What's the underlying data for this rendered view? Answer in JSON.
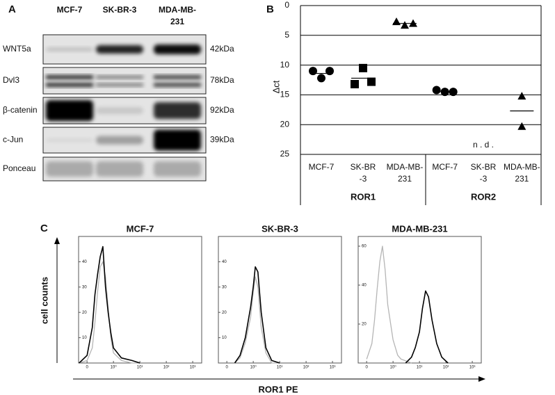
{
  "panel_labels": [
    "A",
    "B",
    "C"
  ],
  "blot": {
    "columns": [
      [
        "MCF-7"
      ],
      [
        "SK-BR-3"
      ],
      [
        "MDA-MB-",
        "231"
      ]
    ],
    "rows": [
      {
        "label": "WNT5a",
        "size": "42kDa"
      },
      {
        "label": "Dvl3",
        "size": "78kDa"
      },
      {
        "label": "β-catenin",
        "size": "92kDa"
      },
      {
        "label": "c-Jun",
        "size": "39kDa"
      },
      {
        "label": "Ponceau"
      }
    ]
  },
  "flow_axes": {
    "y_label": "cell counts",
    "x_label": "ROR1 PE"
  },
  "chart_data": [
    {
      "type": "dot",
      "y_label": "Δct",
      "ylim": [
        0,
        25
      ],
      "y_inverted": true,
      "yticks": [
        0,
        5,
        10,
        15,
        20,
        25
      ],
      "grid": true,
      "groups": [
        {
          "name": "ROR1",
          "categories": [
            {
              "label": [
                "MCF-7"
              ],
              "marker": "circle",
              "values": [
                11,
                12.2,
                11
              ],
              "mean": 11.4
            },
            {
              "label": [
                "SK-BR",
                "-3"
              ],
              "marker": "square",
              "values": [
                13.2,
                10.5,
                12.8
              ],
              "mean": 12.2
            },
            {
              "label": [
                "MDA-MB-",
                "231"
              ],
              "marker": "triangle",
              "values": [
                2.7,
                3.3,
                3
              ],
              "mean": 3
            }
          ]
        },
        {
          "name": "ROR2",
          "categories": [
            {
              "label": [
                "MCF-7"
              ],
              "marker": "circle",
              "values": [
                14.2,
                14.5,
                14.5
              ],
              "mean": 14.4
            },
            {
              "label": [
                "SK-BR",
                "-3"
              ],
              "marker": "square",
              "values": [],
              "annotation": "n . d ."
            },
            {
              "label": [
                "MDA-MB-",
                "231"
              ],
              "marker": "triangle",
              "values": [
                15.2,
                20.3
              ],
              "mean": 17.7
            }
          ]
        }
      ]
    },
    {
      "type": "line",
      "title": "MCF-7",
      "xscale": "biexponential",
      "xlim": [
        -0.32,
        2190
      ],
      "ylim": [
        0,
        50
      ],
      "xticks": [
        0,
        {
          "value": 1,
          "label": "10⁰"
        },
        {
          "value": 10,
          "label": "10¹"
        },
        {
          "value": 100,
          "label": "10²"
        },
        {
          "value": 1000,
          "label": "10³"
        }
      ],
      "yticks": [
        10,
        20,
        30,
        40
      ],
      "series": [
        {
          "color": "#b5b5b5",
          "x": [
            -0.3,
            0,
            0.2,
            0.3,
            0.4,
            0.5,
            0.6,
            0.7,
            0.8,
            0.9,
            1,
            2,
            5,
            10
          ],
          "values": [
            0,
            1,
            6,
            16,
            28,
            38,
            40,
            34,
            22,
            10,
            4,
            1,
            0,
            0
          ]
        },
        {
          "color": "#000000",
          "x": [
            -0.3,
            0,
            0.2,
            0.3,
            0.4,
            0.5,
            0.6,
            0.7,
            0.8,
            0.9,
            1,
            2,
            5,
            10
          ],
          "values": [
            0,
            3,
            14,
            27,
            35,
            42,
            46,
            30,
            20,
            12,
            6,
            2,
            1,
            0
          ]
        }
      ]
    },
    {
      "type": "line",
      "title": "SK-BR-3",
      "xscale": "biexponential",
      "xlim": [
        -0.32,
        2190
      ],
      "ylim": [
        0,
        50
      ],
      "xticks": [
        0,
        {
          "value": 1,
          "label": "10⁰"
        },
        {
          "value": 10,
          "label": "10¹"
        },
        {
          "value": 100,
          "label": "10²"
        },
        {
          "value": 1000,
          "label": "10³"
        }
      ],
      "yticks": [
        10,
        20,
        30,
        40
      ],
      "series": [
        {
          "color": "#b5b5b5",
          "x": [
            0.3,
            0.5,
            0.7,
            0.9,
            1,
            1.2,
            1.5,
            2,
            3,
            5,
            10
          ],
          "values": [
            0,
            2,
            8,
            18,
            28,
            34,
            30,
            14,
            4,
            0,
            0
          ]
        },
        {
          "color": "#000000",
          "x": [
            0.3,
            0.5,
            0.7,
            0.9,
            1,
            1.2,
            1.5,
            2,
            3,
            5,
            10
          ],
          "values": [
            0,
            3,
            10,
            22,
            30,
            38,
            36,
            20,
            6,
            1,
            0
          ]
        }
      ]
    },
    {
      "type": "line",
      "title": "MDA-MB-231",
      "xscale": "biexponential",
      "xlim": [
        -0.32,
        2190
      ],
      "ylim": [
        0,
        65
      ],
      "xticks": [
        0,
        {
          "value": 1,
          "label": "10⁰"
        },
        {
          "value": 10,
          "label": "10¹"
        },
        {
          "value": 100,
          "label": "10²"
        },
        {
          "value": 1000,
          "label": "10³"
        }
      ],
      "yticks": [
        20,
        40,
        60
      ],
      "series": [
        {
          "color": "#b5b5b5",
          "x": [
            0,
            0.2,
            0.3,
            0.4,
            0.5,
            0.6,
            0.7,
            0.8,
            1,
            1.5,
            2,
            5
          ],
          "values": [
            2,
            10,
            22,
            38,
            52,
            60,
            48,
            30,
            12,
            4,
            2,
            0
          ]
        },
        {
          "color": "#000000",
          "x": [
            3,
            5,
            7,
            10,
            13,
            17,
            22,
            30,
            45,
            70,
            120
          ],
          "values": [
            0,
            3,
            8,
            16,
            28,
            37,
            34,
            22,
            10,
            3,
            0
          ]
        }
      ]
    }
  ]
}
